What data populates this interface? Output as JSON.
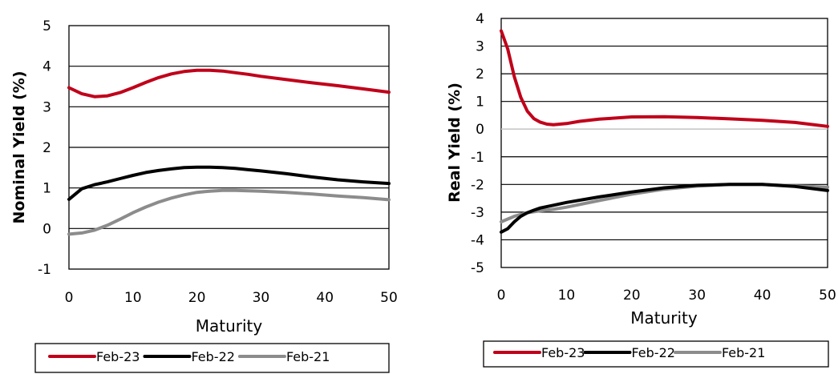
{
  "colors": {
    "Feb-23": "#c0001a",
    "Feb-22": "#000000",
    "Feb-21": "#8c8c8c",
    "grid": "#000000",
    "zero": "#c8c8c8"
  },
  "chart_data": [
    {
      "type": "line",
      "title": "",
      "xlabel": "Maturity",
      "ylabel": "Nominal Yield (%)",
      "xlim": [
        0,
        50
      ],
      "ylim": [
        -1,
        5
      ],
      "x_ticks": [
        0,
        10,
        20,
        30,
        40,
        50
      ],
      "y_ticks": [
        -1,
        0,
        1,
        2,
        3,
        4,
        5
      ],
      "grid": "horizontal",
      "legend_position": "bottom",
      "series": [
        {
          "name": "Feb-23",
          "color": "#c0001a",
          "x": [
            0,
            2,
            4,
            6,
            8,
            10,
            12,
            14,
            16,
            18,
            20,
            22,
            24,
            26,
            28,
            30,
            34,
            38,
            42,
            46,
            50
          ],
          "y": [
            3.47,
            3.32,
            3.25,
            3.27,
            3.35,
            3.47,
            3.6,
            3.72,
            3.81,
            3.87,
            3.9,
            3.9,
            3.88,
            3.84,
            3.8,
            3.75,
            3.67,
            3.59,
            3.52,
            3.44,
            3.36
          ]
        },
        {
          "name": "Feb-22",
          "color": "#000000",
          "x": [
            0,
            2,
            4,
            6,
            8,
            10,
            12,
            14,
            16,
            18,
            20,
            22,
            24,
            26,
            28,
            30,
            34,
            38,
            42,
            46,
            50
          ],
          "y": [
            0.72,
            0.98,
            1.08,
            1.15,
            1.23,
            1.31,
            1.38,
            1.43,
            1.47,
            1.5,
            1.51,
            1.51,
            1.5,
            1.48,
            1.45,
            1.42,
            1.35,
            1.27,
            1.2,
            1.15,
            1.11
          ]
        },
        {
          "name": "Feb-21",
          "color": "#8c8c8c",
          "x": [
            0,
            2,
            4,
            6,
            8,
            10,
            12,
            14,
            16,
            18,
            20,
            22,
            24,
            26,
            28,
            30,
            34,
            38,
            42,
            46,
            50
          ],
          "y": [
            -0.14,
            -0.11,
            -0.04,
            0.08,
            0.23,
            0.39,
            0.53,
            0.65,
            0.75,
            0.83,
            0.89,
            0.92,
            0.94,
            0.94,
            0.93,
            0.92,
            0.89,
            0.85,
            0.8,
            0.76,
            0.71
          ]
        }
      ]
    },
    {
      "type": "line",
      "title": "",
      "xlabel": "Maturity",
      "ylabel": "Real Yield (%)",
      "xlim": [
        0,
        50
      ],
      "ylim": [
        -5,
        4
      ],
      "x_ticks": [
        0,
        10,
        20,
        30,
        40,
        50
      ],
      "y_ticks": [
        -5,
        -4,
        -3,
        -2,
        -1,
        0,
        1,
        2,
        3,
        4
      ],
      "grid": "horizontal",
      "legend_position": "bottom",
      "series": [
        {
          "name": "Feb-23",
          "color": "#c0001a",
          "x": [
            0,
            1,
            2,
            3,
            4,
            5,
            6,
            7,
            8,
            10,
            12,
            15,
            20,
            25,
            30,
            35,
            40,
            45,
            50
          ],
          "y": [
            3.55,
            2.9,
            1.9,
            1.15,
            0.65,
            0.38,
            0.25,
            0.18,
            0.16,
            0.2,
            0.28,
            0.36,
            0.44,
            0.45,
            0.42,
            0.37,
            0.32,
            0.24,
            0.1
          ]
        },
        {
          "name": "Feb-22",
          "color": "#000000",
          "x": [
            0,
            1,
            2,
            3,
            4,
            5,
            6,
            8,
            10,
            15,
            20,
            25,
            30,
            35,
            40,
            45,
            50
          ],
          "y": [
            -3.72,
            -3.6,
            -3.35,
            -3.15,
            -3.02,
            -2.93,
            -2.85,
            -2.75,
            -2.65,
            -2.45,
            -2.27,
            -2.12,
            -2.03,
            -2.0,
            -2.0,
            -2.07,
            -2.22
          ]
        },
        {
          "name": "Feb-21",
          "color": "#8c8c8c",
          "x": [
            0,
            2,
            4,
            6,
            8,
            10,
            15,
            20,
            25,
            30,
            35,
            40,
            45,
            50
          ],
          "y": [
            -3.35,
            -3.15,
            -3.02,
            -2.95,
            -2.9,
            -2.82,
            -2.58,
            -2.35,
            -2.17,
            -2.06,
            -2.0,
            -2.0,
            -2.05,
            -2.1
          ]
        }
      ]
    }
  ]
}
